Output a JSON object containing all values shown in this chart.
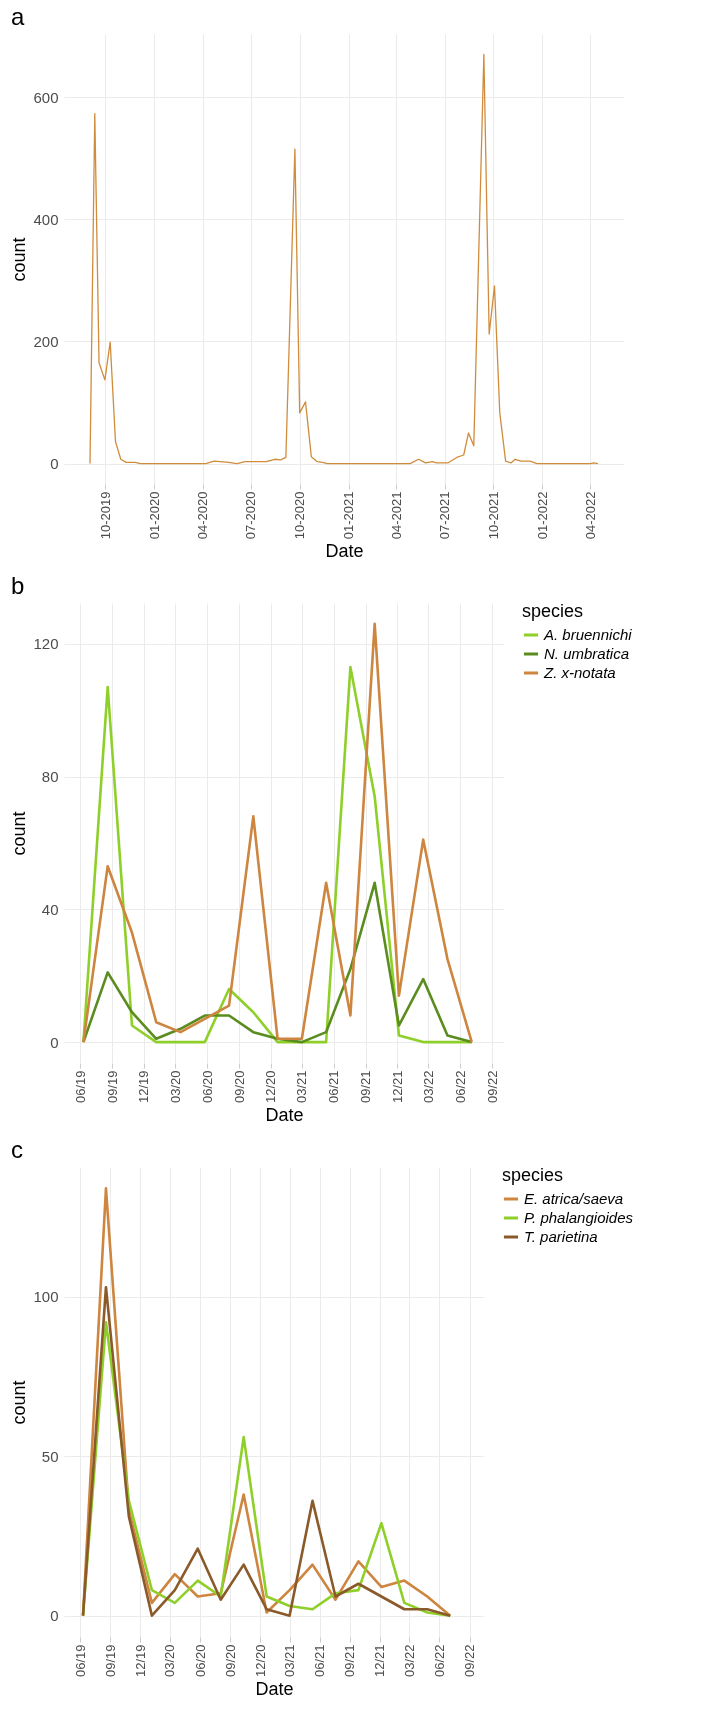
{
  "chart_data": [
    {
      "type": "line",
      "title": "a",
      "xlabel": "Date",
      "ylabel": "count",
      "color": "#d08c3c",
      "grid": true,
      "x": [
        "2019-09-02",
        "2019-09-11",
        "2019-09-19",
        "2019-09-30",
        "2019-10-10",
        "2019-10-20",
        "2019-10-30",
        "2019-11-09",
        "2019-11-26",
        "2019-12-06",
        "2020-04-07",
        "2020-04-23",
        "2020-05-20",
        "2020-06-05",
        "2020-06-20",
        "2020-07-30",
        "2020-08-15",
        "2020-08-26",
        "2020-09-05",
        "2020-09-22",
        "2020-10-01",
        "2020-10-12",
        "2020-10-23",
        "2020-11-03",
        "2020-11-13",
        "2020-11-22",
        "2021-04-27",
        "2021-05-13",
        "2021-05-26",
        "2021-06-08",
        "2021-06-16",
        "2021-07-07",
        "2021-07-24",
        "2021-08-06",
        "2021-08-15",
        "2021-08-25",
        "2021-09-13",
        "2021-09-23",
        "2021-10-03",
        "2021-10-13",
        "2021-10-24",
        "2021-11-03",
        "2021-11-11",
        "2021-11-22",
        "2021-12-09",
        "2021-12-22",
        "2022-04-02",
        "2022-04-08",
        "2022-04-16"
      ],
      "values": [
        0,
        573,
        165,
        137,
        199,
        36,
        7,
        2,
        2,
        0,
        0,
        4,
        2,
        0,
        3,
        3,
        7,
        6,
        10,
        515,
        83,
        101,
        11,
        3,
        2,
        0,
        0,
        7,
        1,
        3,
        1,
        1,
        10,
        14,
        50,
        29,
        670,
        212,
        291,
        83,
        4,
        1,
        7,
        4,
        4,
        0,
        0,
        1,
        0
      ],
      "xlim": [
        "2019-07-15",
        "2022-06-04"
      ],
      "ylim": [
        -33.5,
        703.5
      ],
      "yticks": [
        0,
        200,
        400,
        600
      ],
      "xticks": [
        {
          "value": "2019-10-01",
          "label": "10-2019"
        },
        {
          "value": "2020-01-01",
          "label": "01-2020"
        },
        {
          "value": "2020-04-01",
          "label": "04-2020"
        },
        {
          "value": "2020-07-01",
          "label": "07-2020"
        },
        {
          "value": "2020-10-01",
          "label": "10-2020"
        },
        {
          "value": "2021-01-01",
          "label": "01-2021"
        },
        {
          "value": "2021-04-01",
          "label": "04-2021"
        },
        {
          "value": "2021-07-01",
          "label": "07-2021"
        },
        {
          "value": "2021-10-01",
          "label": "10-2021"
        },
        {
          "value": "2022-01-01",
          "label": "01-2022"
        },
        {
          "value": "2022-04-01",
          "label": "04-2022"
        }
      ]
    },
    {
      "type": "line",
      "title": "b",
      "xlabel": "Date",
      "ylabel": "count",
      "legend_title": "species",
      "grid": true,
      "legend": "right",
      "x": [
        "2019-06-10",
        "2019-08-19",
        "2019-10-28",
        "2020-01-06",
        "2020-03-16",
        "2020-05-25",
        "2020-08-03",
        "2020-10-12",
        "2020-12-21",
        "2021-03-01",
        "2021-05-10",
        "2021-07-19",
        "2021-09-27",
        "2021-12-06",
        "2022-02-14",
        "2022-04-25",
        "2022-07-04"
      ],
      "series": [
        {
          "name": "A. bruennichi",
          "color": "#8fcf2a",
          "values": [
            0,
            107,
            5,
            0,
            0,
            0,
            16,
            9,
            0,
            0,
            0,
            113,
            74,
            2,
            0,
            0,
            0
          ]
        },
        {
          "name": "N. umbratica",
          "color": "#5b8c1f",
          "values": [
            0,
            21,
            9,
            1,
            4,
            8,
            8,
            3,
            1,
            0,
            3,
            22,
            48,
            5,
            19,
            2,
            0
          ]
        },
        {
          "name": "Z. x-notata",
          "color": "#cd853f",
          "values": [
            0,
            53,
            33,
            6,
            3,
            7,
            11,
            68,
            1,
            1,
            48,
            8,
            126,
            14,
            61,
            25,
            0
          ]
        }
      ],
      "xlim": [
        "2019-04-15",
        "2022-10-05"
      ],
      "ylim": [
        -6.3,
        132.3
      ],
      "yticks": [
        0,
        40,
        80,
        120
      ],
      "xticks": [
        {
          "value": "2019-06-01",
          "label": "06/19"
        },
        {
          "value": "2019-09-01",
          "label": "09/19"
        },
        {
          "value": "2019-12-01",
          "label": "12/19"
        },
        {
          "value": "2020-03-01",
          "label": "03/20"
        },
        {
          "value": "2020-06-01",
          "label": "06/20"
        },
        {
          "value": "2020-09-01",
          "label": "09/20"
        },
        {
          "value": "2020-12-01",
          "label": "12/20"
        },
        {
          "value": "2021-03-01",
          "label": "03/21"
        },
        {
          "value": "2021-06-01",
          "label": "06/21"
        },
        {
          "value": "2021-09-01",
          "label": "09/21"
        },
        {
          "value": "2021-12-01",
          "label": "12/21"
        },
        {
          "value": "2022-03-01",
          "label": "03/22"
        },
        {
          "value": "2022-06-01",
          "label": "06/22"
        },
        {
          "value": "2022-09-01",
          "label": "09/22"
        }
      ]
    },
    {
      "type": "line",
      "title": "c",
      "xlabel": "Date",
      "ylabel": "count",
      "legend_title": "species",
      "grid": true,
      "legend": "right",
      "x": [
        "2019-06-10",
        "2019-08-19",
        "2019-10-28",
        "2020-01-06",
        "2020-03-16",
        "2020-05-25",
        "2020-08-03",
        "2020-10-12",
        "2020-12-21",
        "2021-03-01",
        "2021-05-10",
        "2021-07-19",
        "2021-09-27",
        "2021-12-06",
        "2022-02-14",
        "2022-04-25",
        "2022-07-04"
      ],
      "series": [
        {
          "name": "E. atrica/saeva",
          "color": "#cd853f",
          "values": [
            0,
            134,
            33,
            4,
            13,
            6,
            7,
            38,
            1,
            8,
            16,
            5,
            17,
            9,
            11,
            6,
            0
          ]
        },
        {
          "name": "P. phalangioides",
          "color": "#8fcf2a",
          "values": [
            0,
            92,
            36,
            8,
            4,
            11,
            6,
            56,
            6,
            3,
            2,
            7,
            8,
            29,
            4,
            1,
            0
          ]
        },
        {
          "name": "T. parietina",
          "color": "#8b5a2b",
          "values": [
            0,
            103,
            31,
            0,
            8,
            21,
            5,
            16,
            2,
            0,
            36,
            6,
            10,
            6,
            2,
            2,
            0
          ]
        }
      ],
      "xlim": [
        "2019-04-13",
        "2022-10-15"
      ],
      "ylim": [
        -6.7,
        140.7
      ],
      "yticks": [
        0,
        50,
        100
      ],
      "xticks": [
        {
          "value": "2019-06-01",
          "label": "06/19"
        },
        {
          "value": "2019-09-01",
          "label": "09/19"
        },
        {
          "value": "2019-12-01",
          "label": "12/19"
        },
        {
          "value": "2020-03-01",
          "label": "03/20"
        },
        {
          "value": "2020-06-01",
          "label": "06/20"
        },
        {
          "value": "2020-09-01",
          "label": "09/20"
        },
        {
          "value": "2020-12-01",
          "label": "12/20"
        },
        {
          "value": "2021-03-01",
          "label": "03/21"
        },
        {
          "value": "2021-06-01",
          "label": "06/21"
        },
        {
          "value": "2021-09-01",
          "label": "09/21"
        },
        {
          "value": "2021-12-01",
          "label": "12/21"
        },
        {
          "value": "2022-03-01",
          "label": "03/22"
        },
        {
          "value": "2022-06-01",
          "label": "06/22"
        },
        {
          "value": "2022-09-01",
          "label": "09/22"
        }
      ]
    }
  ]
}
